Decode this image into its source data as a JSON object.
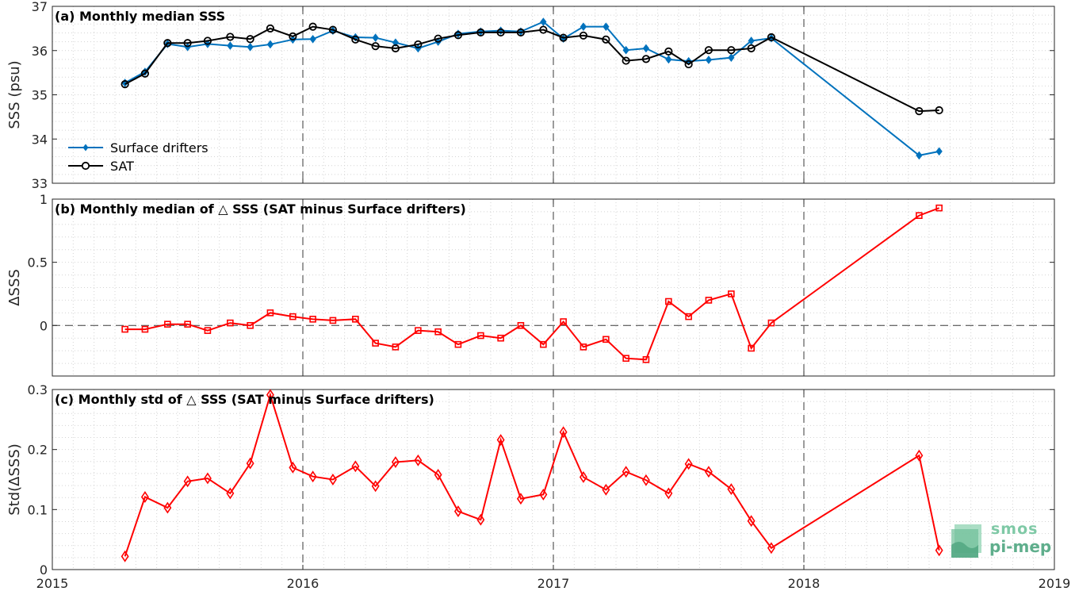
{
  "chart_data": [
    {
      "type": "line",
      "panel": "a",
      "title": "(a) Monthly median SSS",
      "ylabel": "SSS (psu)",
      "ylim": [
        33,
        37
      ],
      "yticks": [
        33,
        34,
        35,
        36,
        37
      ],
      "xlim": [
        2015,
        2019
      ],
      "xticks": [
        "2015",
        "2016",
        "2017",
        "2018",
        "2019"
      ],
      "grid": true,
      "legend": "bottom-left",
      "series": [
        {
          "name": "Surface drifters",
          "color": "#0072bd",
          "marker": "diamond",
          "x": [
            2015.29,
            2015.37,
            2015.46,
            2015.54,
            2015.62,
            2015.71,
            2015.79,
            2015.87,
            2015.96,
            2016.04,
            2016.12,
            2016.21,
            2016.29,
            2016.37,
            2016.46,
            2016.54,
            2016.62,
            2016.71,
            2016.79,
            2016.87,
            2016.96,
            2017.04,
            2017.12,
            2017.21,
            2017.29,
            2017.37,
            2017.46,
            2017.54,
            2017.62,
            2017.71,
            2017.79,
            2017.87,
            2018.46,
            2018.54
          ],
          "values": [
            35.27,
            35.52,
            36.15,
            36.08,
            36.15,
            36.11,
            36.08,
            36.14,
            36.25,
            36.26,
            36.45,
            36.3,
            36.29,
            36.18,
            36.05,
            36.2,
            36.38,
            36.43,
            36.45,
            36.43,
            36.65,
            36.27,
            36.54,
            36.54,
            36.01,
            36.05,
            35.8,
            35.76,
            35.79,
            35.84,
            36.22,
            36.28,
            33.63,
            33.72
          ]
        },
        {
          "name": "SAT",
          "color": "#000000",
          "marker": "circle",
          "x": [
            2015.29,
            2015.37,
            2015.46,
            2015.54,
            2015.62,
            2015.71,
            2015.79,
            2015.87,
            2015.96,
            2016.04,
            2016.12,
            2016.21,
            2016.29,
            2016.37,
            2016.46,
            2016.54,
            2016.62,
            2016.71,
            2016.79,
            2016.87,
            2016.96,
            2017.04,
            2017.12,
            2017.21,
            2017.29,
            2017.37,
            2017.46,
            2017.54,
            2017.62,
            2017.71,
            2017.79,
            2017.87,
            2018.46,
            2018.54
          ],
          "values": [
            35.24,
            35.48,
            36.17,
            36.17,
            36.22,
            36.31,
            36.26,
            36.5,
            36.32,
            36.54,
            36.47,
            36.25,
            36.1,
            36.05,
            36.14,
            36.27,
            36.35,
            36.41,
            36.41,
            36.41,
            36.47,
            36.29,
            36.34,
            36.25,
            35.77,
            35.81,
            35.98,
            35.69,
            36.01,
            36.01,
            36.05,
            36.3,
            34.63,
            34.65
          ]
        }
      ]
    },
    {
      "type": "line",
      "panel": "b",
      "title": "(b) Monthly median of △ SSS (SAT minus Surface drifters)",
      "ylabel": "ΔSSS",
      "ylim": [
        -0.4,
        1
      ],
      "yticks": [
        0,
        0.5,
        1
      ],
      "xlim": [
        2015,
        2019
      ],
      "grid": true,
      "zero_line": true,
      "series": [
        {
          "name": "",
          "color": "#ff0000",
          "marker": "square",
          "x": [
            2015.29,
            2015.37,
            2015.46,
            2015.54,
            2015.62,
            2015.71,
            2015.79,
            2015.87,
            2015.96,
            2016.04,
            2016.12,
            2016.21,
            2016.29,
            2016.37,
            2016.46,
            2016.54,
            2016.62,
            2016.71,
            2016.79,
            2016.87,
            2016.96,
            2017.04,
            2017.12,
            2017.21,
            2017.29,
            2017.37,
            2017.46,
            2017.54,
            2017.62,
            2017.71,
            2017.79,
            2017.87,
            2018.46,
            2018.54
          ],
          "values": [
            -0.03,
            -0.03,
            0.01,
            0.01,
            -0.04,
            0.02,
            0.0,
            0.1,
            0.07,
            0.05,
            0.04,
            0.05,
            -0.14,
            -0.17,
            -0.04,
            -0.05,
            -0.15,
            -0.08,
            -0.1,
            0.0,
            -0.15,
            0.03,
            -0.17,
            -0.11,
            -0.26,
            -0.27,
            0.19,
            0.07,
            0.2,
            0.25,
            -0.18,
            0.02,
            0.87,
            0.93
          ]
        }
      ]
    },
    {
      "type": "line",
      "panel": "c",
      "title": "(c) Monthly std of △ SSS (SAT minus Surface drifters)",
      "ylabel": "Std(ΔSSS)",
      "ylim": [
        0,
        0.3
      ],
      "yticks": [
        0,
        0.1,
        0.2,
        0.3
      ],
      "xlim": [
        2015,
        2019
      ],
      "xticks": [
        "2015",
        "2016",
        "2017",
        "2018",
        "2019"
      ],
      "grid": true,
      "series": [
        {
          "name": "",
          "color": "#ff0000",
          "marker": "diamond-open",
          "x": [
            2015.29,
            2015.37,
            2015.46,
            2015.54,
            2015.62,
            2015.71,
            2015.79,
            2015.87,
            2015.96,
            2016.04,
            2016.12,
            2016.21,
            2016.29,
            2016.37,
            2016.46,
            2016.54,
            2016.62,
            2016.71,
            2016.79,
            2016.87,
            2016.96,
            2017.04,
            2017.12,
            2017.21,
            2017.29,
            2017.37,
            2017.46,
            2017.54,
            2017.62,
            2017.71,
            2017.79,
            2017.87,
            2018.46,
            2018.54
          ],
          "values": [
            0.022,
            0.121,
            0.103,
            0.147,
            0.152,
            0.127,
            0.177,
            0.291,
            0.17,
            0.155,
            0.15,
            0.172,
            0.139,
            0.179,
            0.182,
            0.158,
            0.097,
            0.083,
            0.216,
            0.118,
            0.125,
            0.229,
            0.154,
            0.133,
            0.163,
            0.149,
            0.127,
            0.176,
            0.163,
            0.134,
            0.081,
            0.036,
            0.19,
            0.032
          ]
        }
      ]
    }
  ],
  "logo": {
    "line1": "smos",
    "line2": "pi-mep",
    "color": "#5fae8c"
  }
}
